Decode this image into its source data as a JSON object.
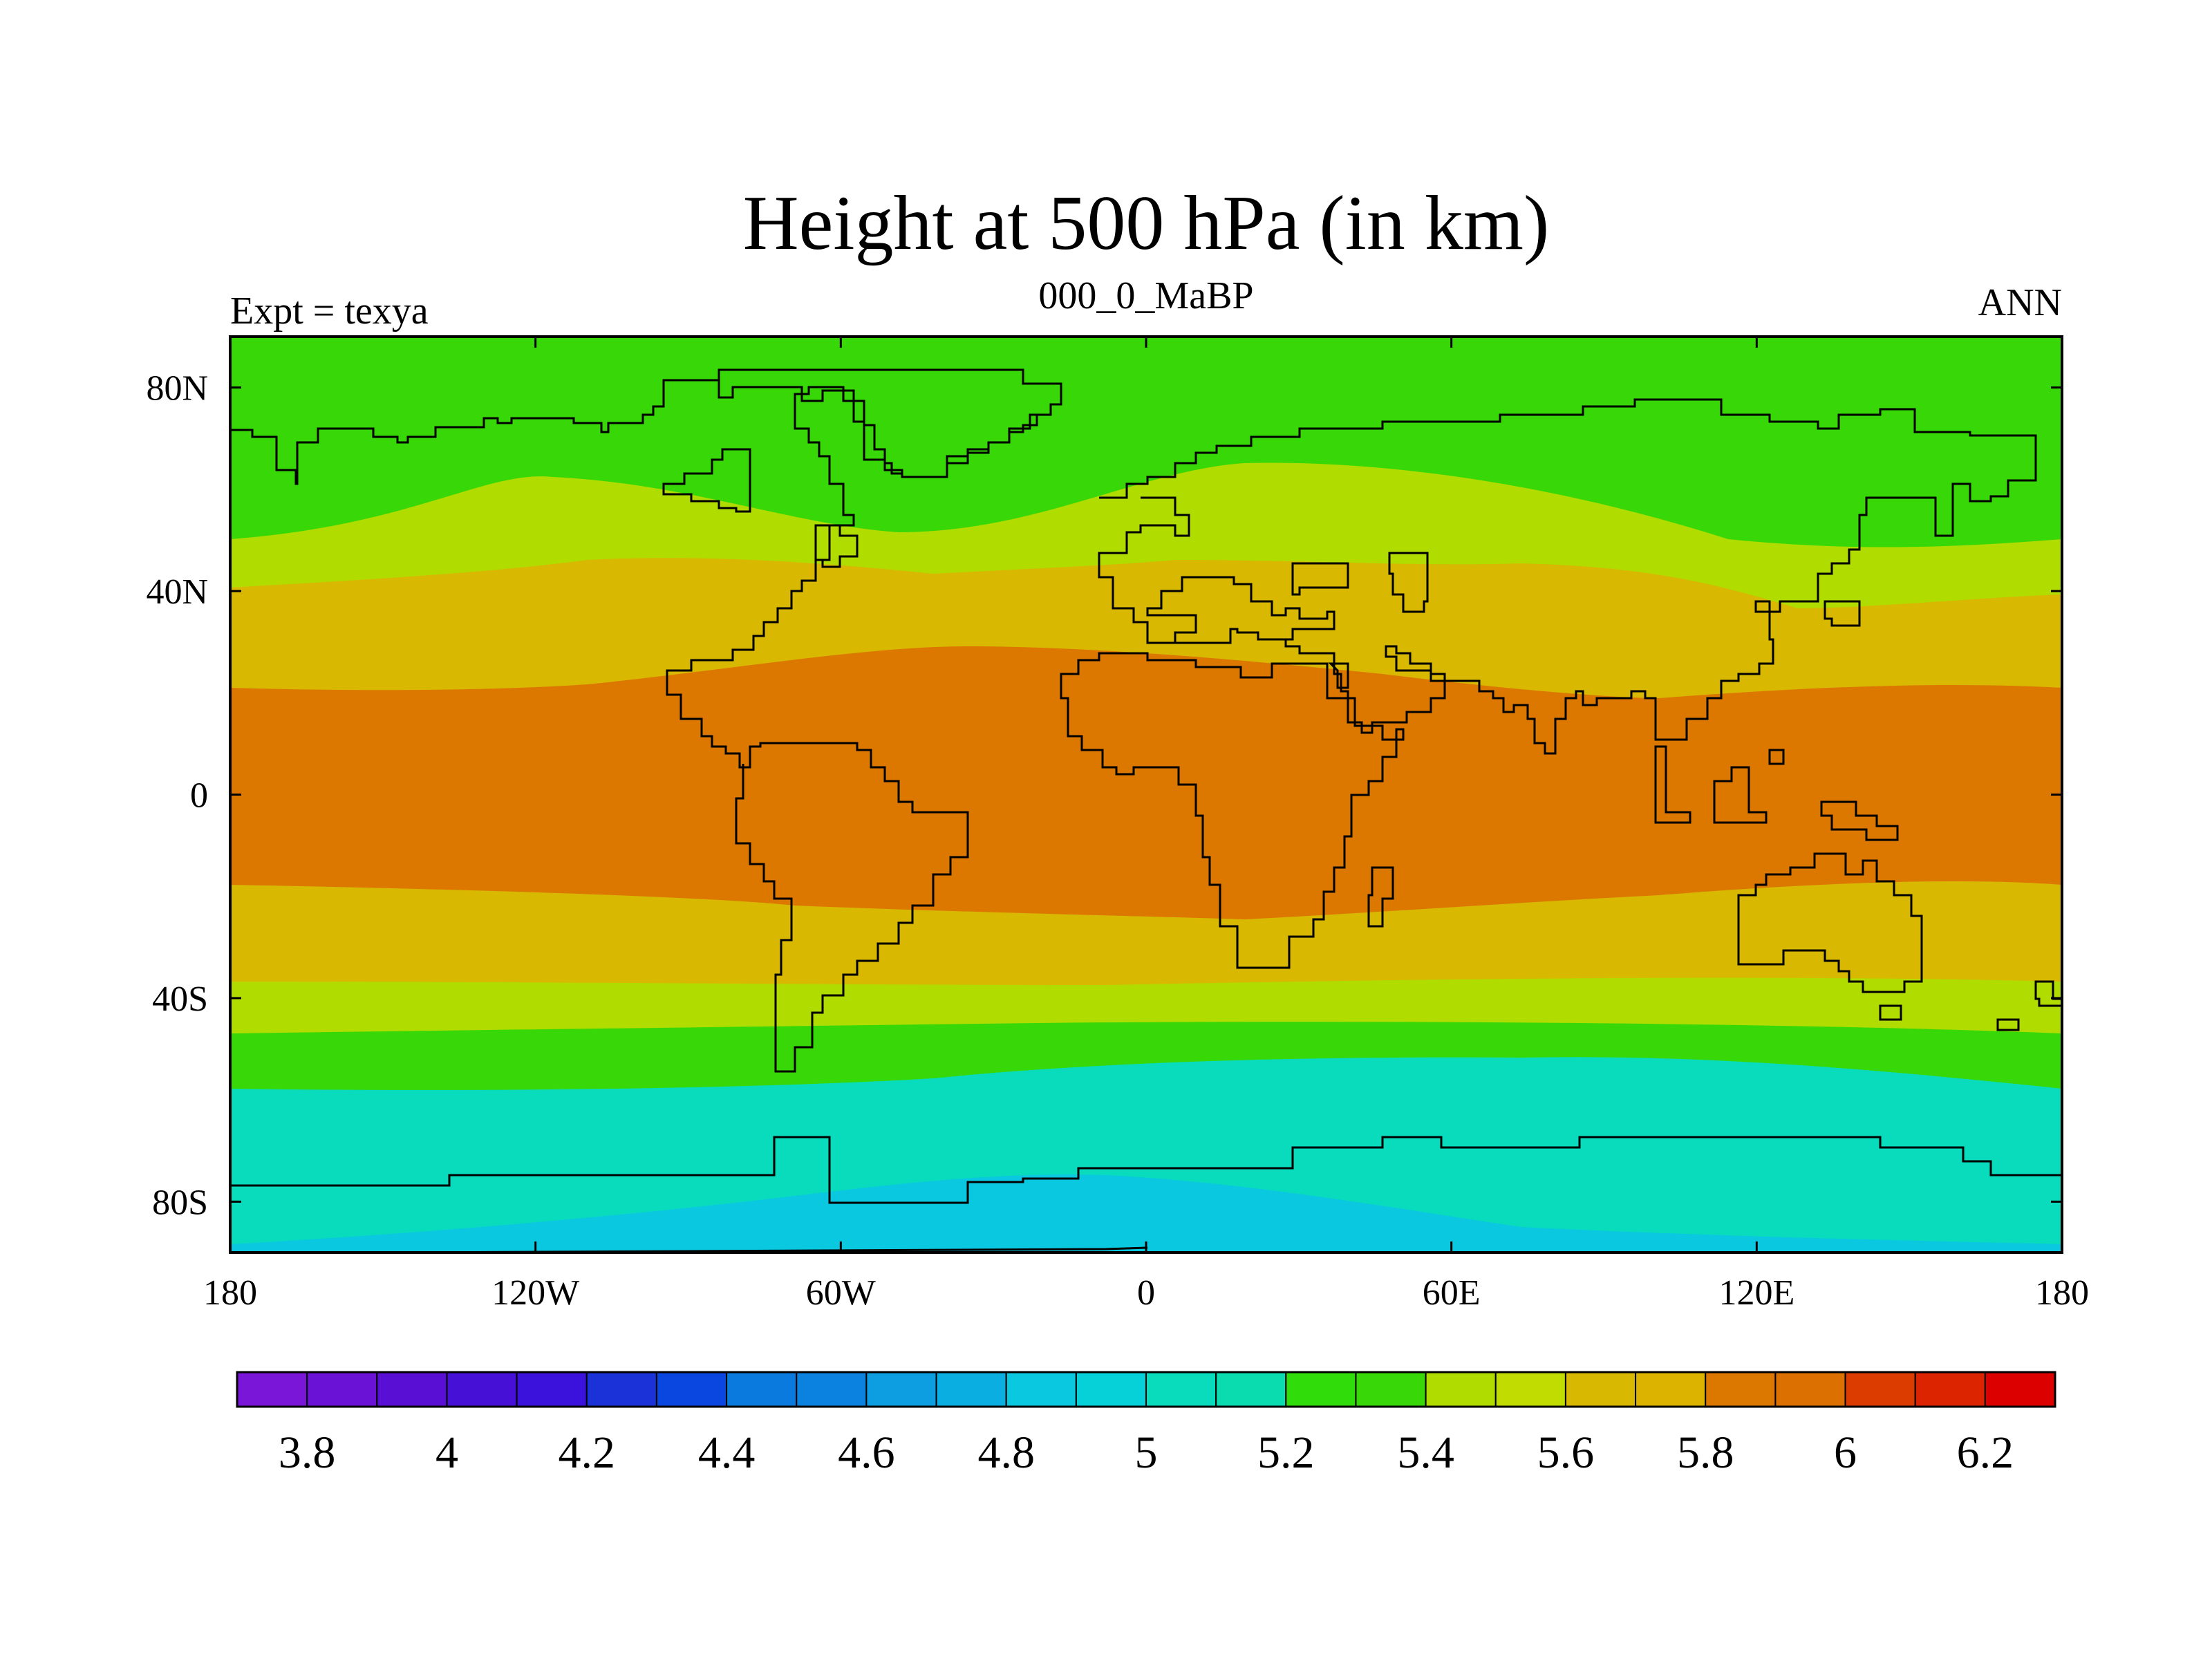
{
  "chart_data": {
    "type": "filled-contour-map",
    "title": "Height at 500 hPa (in km)",
    "left_string": "Expt = texya",
    "center_string": "000_0_MaBP",
    "right_string": "ANN",
    "projection": "cylindrical equidistant",
    "lon_range": [
      -180,
      180
    ],
    "lat_range": [
      -90,
      90
    ],
    "x_ticks": [
      {
        "value": -180,
        "label": "180"
      },
      {
        "value": -120,
        "label": "120W"
      },
      {
        "value": -60,
        "label": "60W"
      },
      {
        "value": 0,
        "label": "0"
      },
      {
        "value": 60,
        "label": "60E"
      },
      {
        "value": 120,
        "label": "120E"
      },
      {
        "value": 180,
        "label": "180"
      }
    ],
    "y_ticks": [
      {
        "value": 80,
        "label": "80N"
      },
      {
        "value": 40,
        "label": "40N"
      },
      {
        "value": 0,
        "label": "0"
      },
      {
        "value": -40,
        "label": "40S"
      },
      {
        "value": -80,
        "label": "80S"
      }
    ],
    "units": "km",
    "contour_levels": [
      3.7,
      3.8,
      3.9,
      4,
      4.1,
      4.2,
      4.3,
      4.4,
      4.5,
      4.6,
      4.7,
      4.8,
      4.9,
      5,
      5.1,
      5.2,
      5.3,
      5.4,
      5.5,
      5.6,
      5.7,
      5.8,
      5.9,
      6,
      6.1,
      6.2
    ],
    "colors": [
      "#7a16d8",
      "#6a12d6",
      "#5a0fd4",
      "#4610d6",
      "#3a12dc",
      "#1a32d8",
      "#0a46e0",
      "#0a7ade",
      "#0c82e0",
      "#0c9ee0",
      "#0aaee0",
      "#0ac8e0",
      "#06d0d8",
      "#08dcbc",
      "#0adcb0",
      "#30dc0a",
      "#38d808",
      "#b0dc00",
      "#c0dc00",
      "#d8b800",
      "#dcb400",
      "#dc7800",
      "#dc7000",
      "#dc3c00",
      "#dc2400",
      "#dc0000"
    ],
    "colorbar_labels": [
      "3.8",
      "4",
      "4.2",
      "4.4",
      "4.6",
      "4.8",
      "5",
      "5.2",
      "5.4",
      "5.6",
      "5.8",
      "6",
      "6.2"
    ],
    "bands": [
      {
        "range_km": "5.2-5.4",
        "color": "#38d808",
        "extent": "north of ~60N to ~52N; 46S-56S"
      },
      {
        "range_km": "5.4-5.6",
        "color": "#b0dc00",
        "extent": "~40N-62N; 37S-46S"
      },
      {
        "range_km": "5.6-5.8",
        "color": "#d8b800",
        "extent": "~20N-44N; 18S-37S"
      },
      {
        "range_km": "5.8-6.0",
        "color": "#dc7800",
        "extent": "~22N to 22S (tropics)"
      },
      {
        "range_km": "5.0-5.2",
        "color": "#08dcbc",
        "extent": "~52S-85S"
      },
      {
        "range_km": "4.8-5.0",
        "color": "#0ac8e0",
        "extent": "Antarctic interior near 0-60E, south of ~75S"
      }
    ]
  }
}
